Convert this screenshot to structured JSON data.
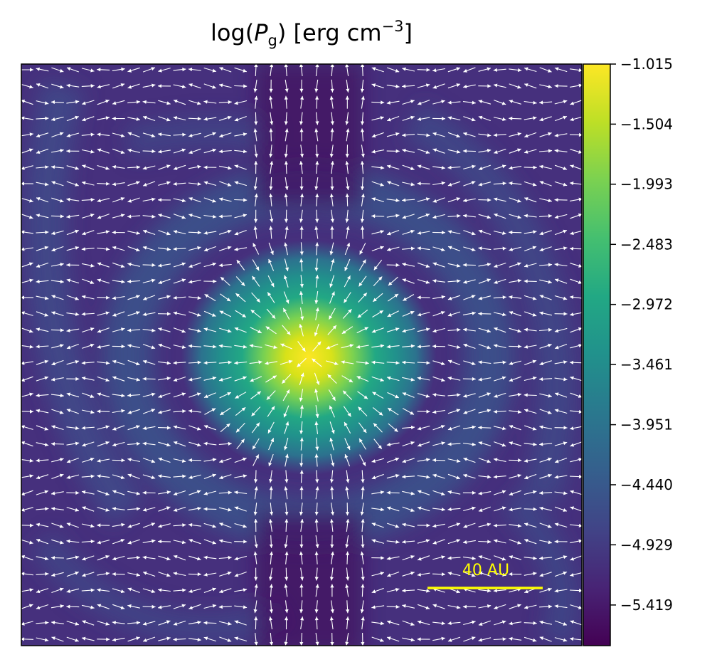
{
  "chart_data": {
    "type": "heatmap",
    "title": {
      "prefix": "log(",
      "var": "P",
      "sub": "g",
      "suffix": ") [erg cm",
      "exp": "−3",
      "end": "]"
    },
    "xlabel": "",
    "ylabel": "",
    "colormap": "viridis",
    "colorbar": {
      "range": [
        -5.75,
        -1.015
      ],
      "ticks": [
        -1.015,
        -1.504,
        -1.993,
        -2.483,
        -2.972,
        -3.461,
        -3.951,
        -4.44,
        -4.929,
        -5.419
      ],
      "tick_labels": [
        "−1.015",
        "−1.504",
        "−1.993",
        "−2.483",
        "−2.972",
        "−3.461",
        "−3.951",
        "−4.440",
        "−4.929",
        "−5.419"
      ]
    },
    "peak_center": [
      0.0,
      0.0
    ],
    "ring_features": "concentric rings of elevated pressure around central peak",
    "vector_field": {
      "overlay": "quiver",
      "color": "#ffffff",
      "grid": [
        37,
        36
      ]
    },
    "scale_bar": {
      "label": "40 AU",
      "color": "#ffff00",
      "length_au": 40
    }
  }
}
